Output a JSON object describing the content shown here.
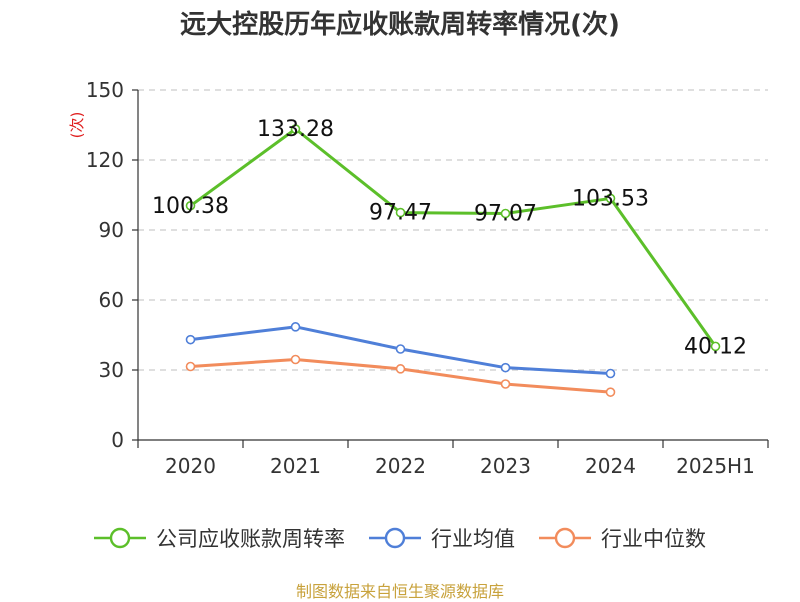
{
  "chart_data": {
    "type": "line",
    "title": "远大控股历年应收账款周转率情况(次)",
    "ylabel": "(次)",
    "ylim": [
      0,
      150
    ],
    "yticks": [
      "0",
      "30",
      "60",
      "90",
      "120",
      "150"
    ],
    "categories": [
      "2020",
      "2021",
      "2022",
      "2023",
      "2024",
      "2025H1"
    ],
    "grid": true,
    "legend_position": "bottom",
    "series": [
      {
        "name": "公司应收账款周转率",
        "color": "#5cbf2a",
        "values": [
          100.38,
          133.28,
          97.47,
          97.07,
          103.53,
          40.12
        ],
        "labels": [
          "100.38",
          "133.28",
          "97.47",
          "97.07",
          "103.53",
          "40.12"
        ]
      },
      {
        "name": "行业均值",
        "color": "#4f7fd8",
        "values": [
          43.0,
          48.5,
          39.0,
          31.0,
          28.5,
          null
        ]
      },
      {
        "name": "行业中位数",
        "color": "#f28c5c",
        "values": [
          31.5,
          34.5,
          30.5,
          24.0,
          20.5,
          null
        ]
      }
    ]
  },
  "footer": {
    "source": "制图数据来自恒生聚源数据库"
  }
}
